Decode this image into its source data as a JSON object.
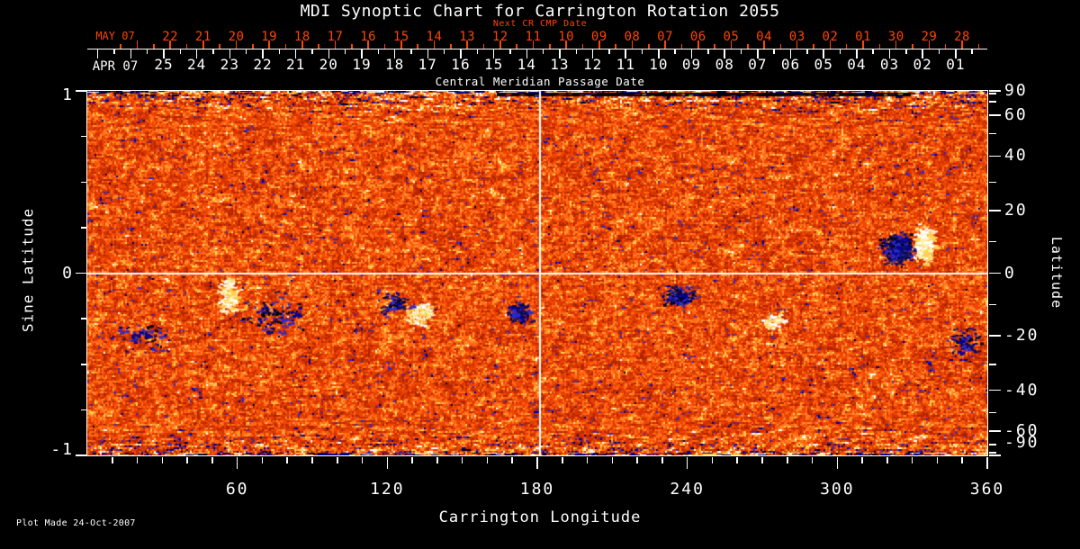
{
  "title": "MDI Synoptic Chart for Carrington Rotation 2055",
  "footer": {
    "plot_made": "Plot Made 24-Oct-2007"
  },
  "colors": {
    "background": "#000000",
    "text": "#ffffff",
    "date_accent": "#ff4500"
  },
  "axes": {
    "top": {
      "next_cr_label": "Next CR CMP Date",
      "cmp_label": "Central Meridian Passage Date",
      "red_month": "MAY 07",
      "red_days": [
        "22",
        "21",
        "20",
        "19",
        "18",
        "17",
        "16",
        "15",
        "14",
        "13",
        "12",
        "11",
        "10",
        "09",
        "08",
        "07",
        "06",
        "05",
        "04",
        "03",
        "02",
        "01",
        "30",
        "29",
        "28"
      ],
      "white_month": "APR 07",
      "white_days": [
        "25",
        "24",
        "23",
        "22",
        "21",
        "20",
        "19",
        "18",
        "17",
        "16",
        "15",
        "14",
        "13",
        "12",
        "11",
        "10",
        "09",
        "08",
        "07",
        "06",
        "05",
        "04",
        "03",
        "02",
        "01"
      ]
    },
    "left": {
      "label": "Sine Latitude",
      "ticks": [
        "1",
        "0",
        "-1"
      ],
      "tick_values": [
        1,
        0,
        -1
      ],
      "minor_values": [
        0.75,
        0.5,
        0.25,
        -0.25,
        -0.5,
        -0.75
      ]
    },
    "right": {
      "label": "Latitude",
      "ticks": [
        "90",
        "60",
        "40",
        "20",
        "0",
        "-20",
        "-40",
        "-60",
        "-90"
      ],
      "tick_values": [
        90,
        60,
        40,
        20,
        0,
        -20,
        -40,
        -60,
        -90
      ],
      "minor_values": [
        80,
        70,
        50,
        30,
        10,
        -10,
        -30,
        -50,
        -70,
        -80
      ]
    },
    "bottom": {
      "label": "Carrington Longitude",
      "ticks": [
        "60",
        "120",
        "180",
        "240",
        "300",
        "360"
      ],
      "tick_values": [
        60,
        120,
        180,
        240,
        300,
        360
      ],
      "minor_step": 10
    }
  },
  "chart_data": {
    "type": "heatmap",
    "title": "MDI Synoptic Chart for Carrington Rotation 2055",
    "xlabel": "Carrington Longitude",
    "ylabel_left": "Sine Latitude",
    "ylabel_right": "Latitude",
    "xlim": [
      0,
      360
    ],
    "ylim_sine_latitude": [
      -1,
      1
    ],
    "x_ticks": [
      60,
      120,
      180,
      240,
      300,
      360
    ],
    "left_ticks_sine": [
      1,
      0,
      -1
    ],
    "right_ticks_latitude_deg": [
      90,
      60,
      40,
      20,
      0,
      -20,
      -40,
      -60,
      -90
    ],
    "grid": "crosshair only",
    "crosshair": {
      "carrington_longitude": 180,
      "sine_latitude": 0
    },
    "cmp_date_axis": {
      "next_rotation_month": "MAY 07",
      "next_rotation_days": [
        "22",
        "21",
        "20",
        "19",
        "18",
        "17",
        "16",
        "15",
        "14",
        "13",
        "12",
        "11",
        "10",
        "09",
        "08",
        "07",
        "06",
        "05",
        "04",
        "03",
        "02",
        "01",
        "30",
        "29",
        "28"
      ],
      "current_rotation_month": "APR 07",
      "current_rotation_days": [
        "25",
        "24",
        "23",
        "22",
        "21",
        "20",
        "19",
        "18",
        "17",
        "16",
        "15",
        "14",
        "13",
        "12",
        "11",
        "10",
        "09",
        "08",
        "07",
        "06",
        "05",
        "04",
        "03",
        "02",
        "01"
      ]
    },
    "palette": {
      "deep_negative": "#000018",
      "navy": "#000090",
      "blue": "#2a2ad0",
      "dark_red": "#b22400",
      "red": "#d63400",
      "base": "#ef4605",
      "orange": "#ff6a14",
      "bright_orange": "#ff9430",
      "yellow": "#ffd24e",
      "white": "#ffffff"
    },
    "noise": {
      "seed": 20550731,
      "polar_band_fraction": 0.1,
      "polar_boost": 1.1
    },
    "features": [
      {
        "name": "plage-left",
        "lon": 56,
        "slat": -0.12,
        "rx_deg": 5,
        "ry_slat": 0.13,
        "polarity": "positive",
        "n": 150
      },
      {
        "name": "speckles-left",
        "lon": 74,
        "slat": -0.23,
        "rx_deg": 16,
        "ry_slat": 0.14,
        "polarity": "negative",
        "n": 85
      },
      {
        "name": "plage-center-left",
        "lon": 132,
        "slat": -0.22,
        "rx_deg": 7,
        "ry_slat": 0.09,
        "polarity": "positive",
        "n": 95
      },
      {
        "name": "speckles-center-left",
        "lon": 122,
        "slat": -0.16,
        "rx_deg": 9,
        "ry_slat": 0.1,
        "polarity": "negative",
        "n": 50
      },
      {
        "name": "speckles-center",
        "lon": 172,
        "slat": -0.21,
        "rx_deg": 6.5,
        "ry_slat": 0.08,
        "polarity": "negative",
        "n": 85
      },
      {
        "name": "speckles-center-right",
        "lon": 236,
        "slat": -0.13,
        "rx_deg": 8,
        "ry_slat": 0.07,
        "polarity": "negative",
        "n": 105
      },
      {
        "name": "plage-right",
        "lon": 274,
        "slat": -0.26,
        "rx_deg": 6,
        "ry_slat": 0.07,
        "polarity": "positive",
        "n": 60
      },
      {
        "name": "active-region-negative",
        "lon": 324,
        "slat": 0.14,
        "rx_deg": 8.5,
        "ry_slat": 0.11,
        "polarity": "negative",
        "n": 270
      },
      {
        "name": "active-region-positive",
        "lon": 334,
        "slat": 0.16,
        "rx_deg": 5,
        "ry_slat": 0.13,
        "polarity": "positive",
        "n": 240
      },
      {
        "name": "speckles-far-right",
        "lon": 351,
        "slat": -0.38,
        "rx_deg": 8,
        "ry_slat": 0.09,
        "polarity": "negative",
        "n": 55
      },
      {
        "name": "speckles-far-left",
        "lon": 22,
        "slat": -0.34,
        "rx_deg": 12,
        "ry_slat": 0.1,
        "polarity": "negative",
        "n": 55
      }
    ]
  }
}
